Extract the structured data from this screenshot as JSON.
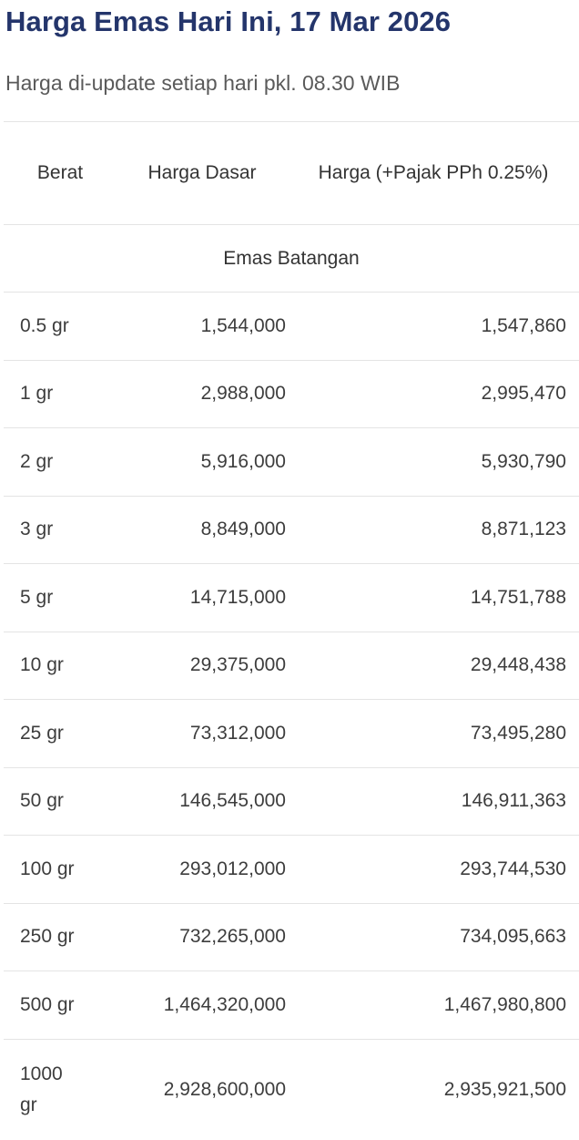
{
  "header": {
    "title": "Harga Emas Hari Ini, 17 Mar 2026",
    "subtitle": "Harga di-update setiap hari pkl. 08.30 WIB"
  },
  "table": {
    "columns": {
      "berat": "Berat",
      "harga_dasar": "Harga Dasar",
      "harga_pajak": "Harga (+Pajak PPh 0.25%)"
    },
    "section_label": "Emas Batangan",
    "rows": [
      {
        "berat": "0.5 gr",
        "harga_dasar": "1,544,000",
        "harga_pajak": "1,547,860"
      },
      {
        "berat": "1 gr",
        "harga_dasar": "2,988,000",
        "harga_pajak": "2,995,470"
      },
      {
        "berat": "2 gr",
        "harga_dasar": "5,916,000",
        "harga_pajak": "5,930,790"
      },
      {
        "berat": "3 gr",
        "harga_dasar": "8,849,000",
        "harga_pajak": "8,871,123"
      },
      {
        "berat": "5 gr",
        "harga_dasar": "14,715,000",
        "harga_pajak": "14,751,788"
      },
      {
        "berat": "10 gr",
        "harga_dasar": "29,375,000",
        "harga_pajak": "29,448,438"
      },
      {
        "berat": "25 gr",
        "harga_dasar": "73,312,000",
        "harga_pajak": "73,495,280"
      },
      {
        "berat": "50 gr",
        "harga_dasar": "146,545,000",
        "harga_pajak": "146,911,363"
      },
      {
        "berat": "100 gr",
        "harga_dasar": "293,012,000",
        "harga_pajak": "293,744,530"
      },
      {
        "berat": "250 gr",
        "harga_dasar": "732,265,000",
        "harga_pajak": "734,095,663"
      },
      {
        "berat": "500 gr",
        "harga_dasar": "1,464,320,000",
        "harga_pajak": "1,467,980,800"
      },
      {
        "berat": "1000 gr",
        "harga_dasar": "2,928,600,000",
        "harga_pajak": "2,935,921,500"
      }
    ]
  }
}
